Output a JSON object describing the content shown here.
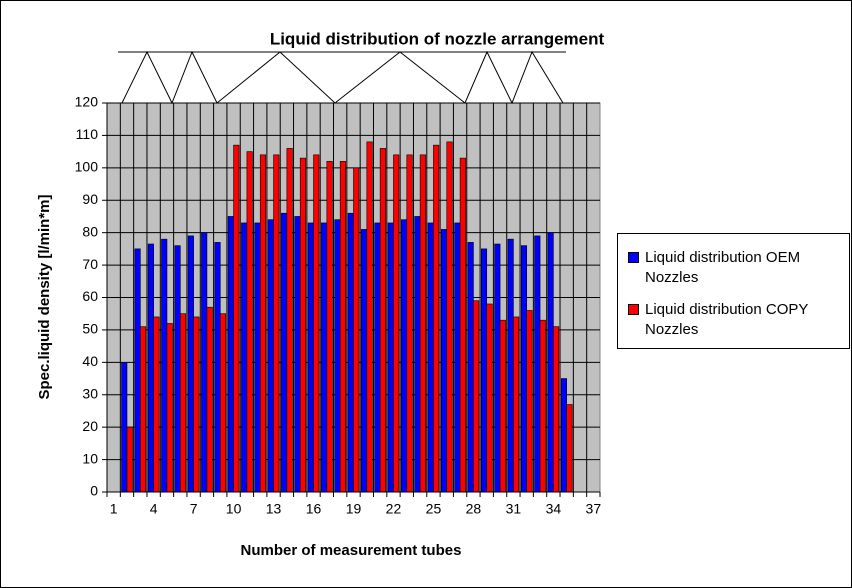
{
  "chart_data": {
    "type": "bar",
    "title": "Liquid distribution of nozzle arrangement",
    "y_label": "Spec.liquid density [l/min*m]",
    "x_label": "Number of measurement tubes",
    "categories": [
      1,
      null,
      null,
      4,
      null,
      null,
      7,
      null,
      null,
      10,
      null,
      null,
      13,
      null,
      null,
      16,
      null,
      null,
      19,
      null,
      null,
      22,
      null,
      null,
      25,
      null,
      null,
      28,
      null,
      null,
      31,
      null,
      null,
      34,
      null,
      null,
      37
    ],
    "series": [
      {
        "name": "Liquid distribution OEM Nozzles",
        "color": "#0000ff",
        "values": [
          null,
          40,
          75,
          76.5,
          78,
          76,
          79,
          80,
          77,
          85,
          83,
          83,
          84,
          86,
          85,
          83,
          83,
          84,
          86,
          81,
          83,
          83,
          84,
          85,
          83,
          81,
          83,
          77,
          75,
          76.5,
          78,
          76,
          79,
          80,
          35,
          null,
          null
        ]
      },
      {
        "name": "Liquid distribution COPY Nozzles",
        "color": "#ff0000",
        "values": [
          null,
          20,
          51,
          54,
          52,
          55,
          54,
          57,
          55,
          107,
          105,
          104,
          104,
          106,
          103,
          104,
          102,
          102,
          100,
          108,
          106,
          104,
          104,
          104,
          107,
          108,
          103,
          59,
          58,
          53,
          54,
          56,
          53,
          51,
          27,
          null,
          null
        ]
      }
    ],
    "ylim": [
      0,
      120
    ],
    "yticks": [
      0,
      10,
      20,
      30,
      40,
      50,
      60,
      70,
      80,
      90,
      100,
      110,
      120
    ],
    "grid": true,
    "legend": "right",
    "plot_background": "#c0c0c0"
  }
}
